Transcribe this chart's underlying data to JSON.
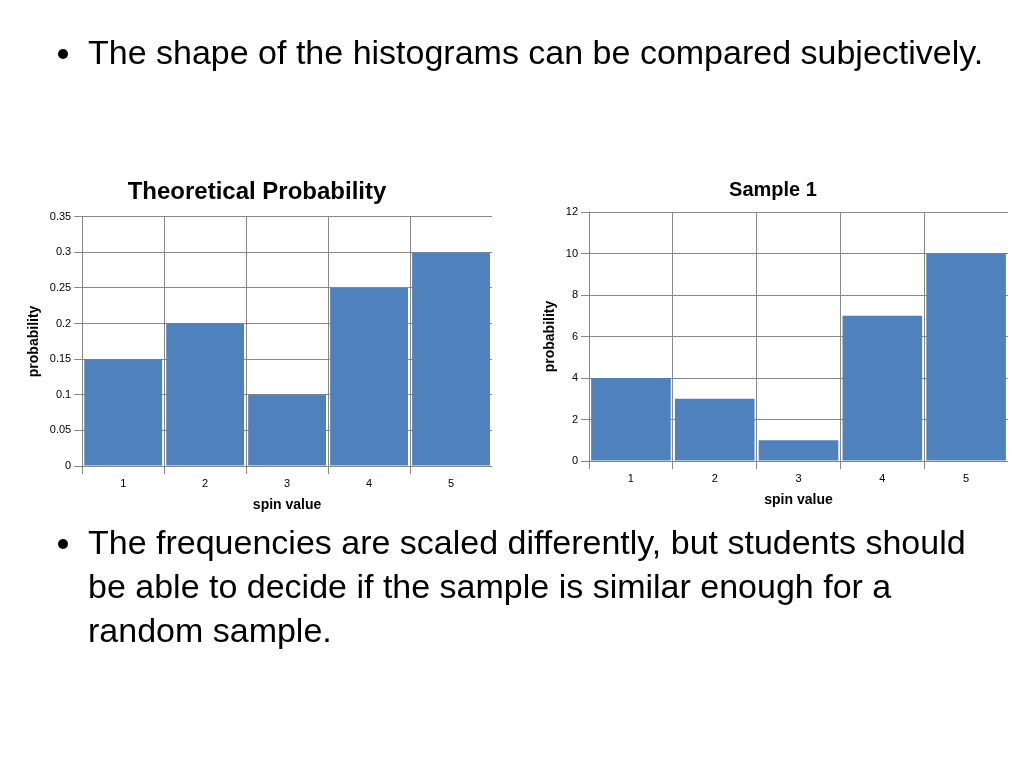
{
  "chart_data": [
    {
      "type": "other",
      "annotations": [
        "The shape of the histograms can be compared subjectively."
      ]
    },
    {
      "type": "bar",
      "title": "Theoretical Probability",
      "xlabel": "spin value",
      "ylabel": "probability",
      "categories": [
        "1",
        "2",
        "3",
        "4",
        "5"
      ],
      "values": [
        0.15,
        0.2,
        0.1,
        0.25,
        0.3
      ],
      "color": "#4f81bd",
      "ylim": [
        0,
        0.35
      ],
      "yticks": [
        0,
        0.05,
        0.1,
        0.15,
        0.2,
        0.25,
        0.3,
        0.35
      ],
      "grid": true
    },
    {
      "type": "bar",
      "title": "Sample 1",
      "xlabel": "spin value",
      "ylabel": "probability",
      "categories": [
        "1",
        "2",
        "3",
        "4",
        "5"
      ],
      "values": [
        4,
        3,
        1,
        7,
        10
      ],
      "color": "#4f81bd",
      "ylim": [
        0,
        12
      ],
      "yticks": [
        0,
        2,
        4,
        6,
        8,
        10,
        12
      ],
      "grid": true
    },
    {
      "type": "other",
      "annotations": [
        "The frequencies are scaled differently, but students should be able to decide if the sample is similar enough for a random sample."
      ]
    }
  ]
}
